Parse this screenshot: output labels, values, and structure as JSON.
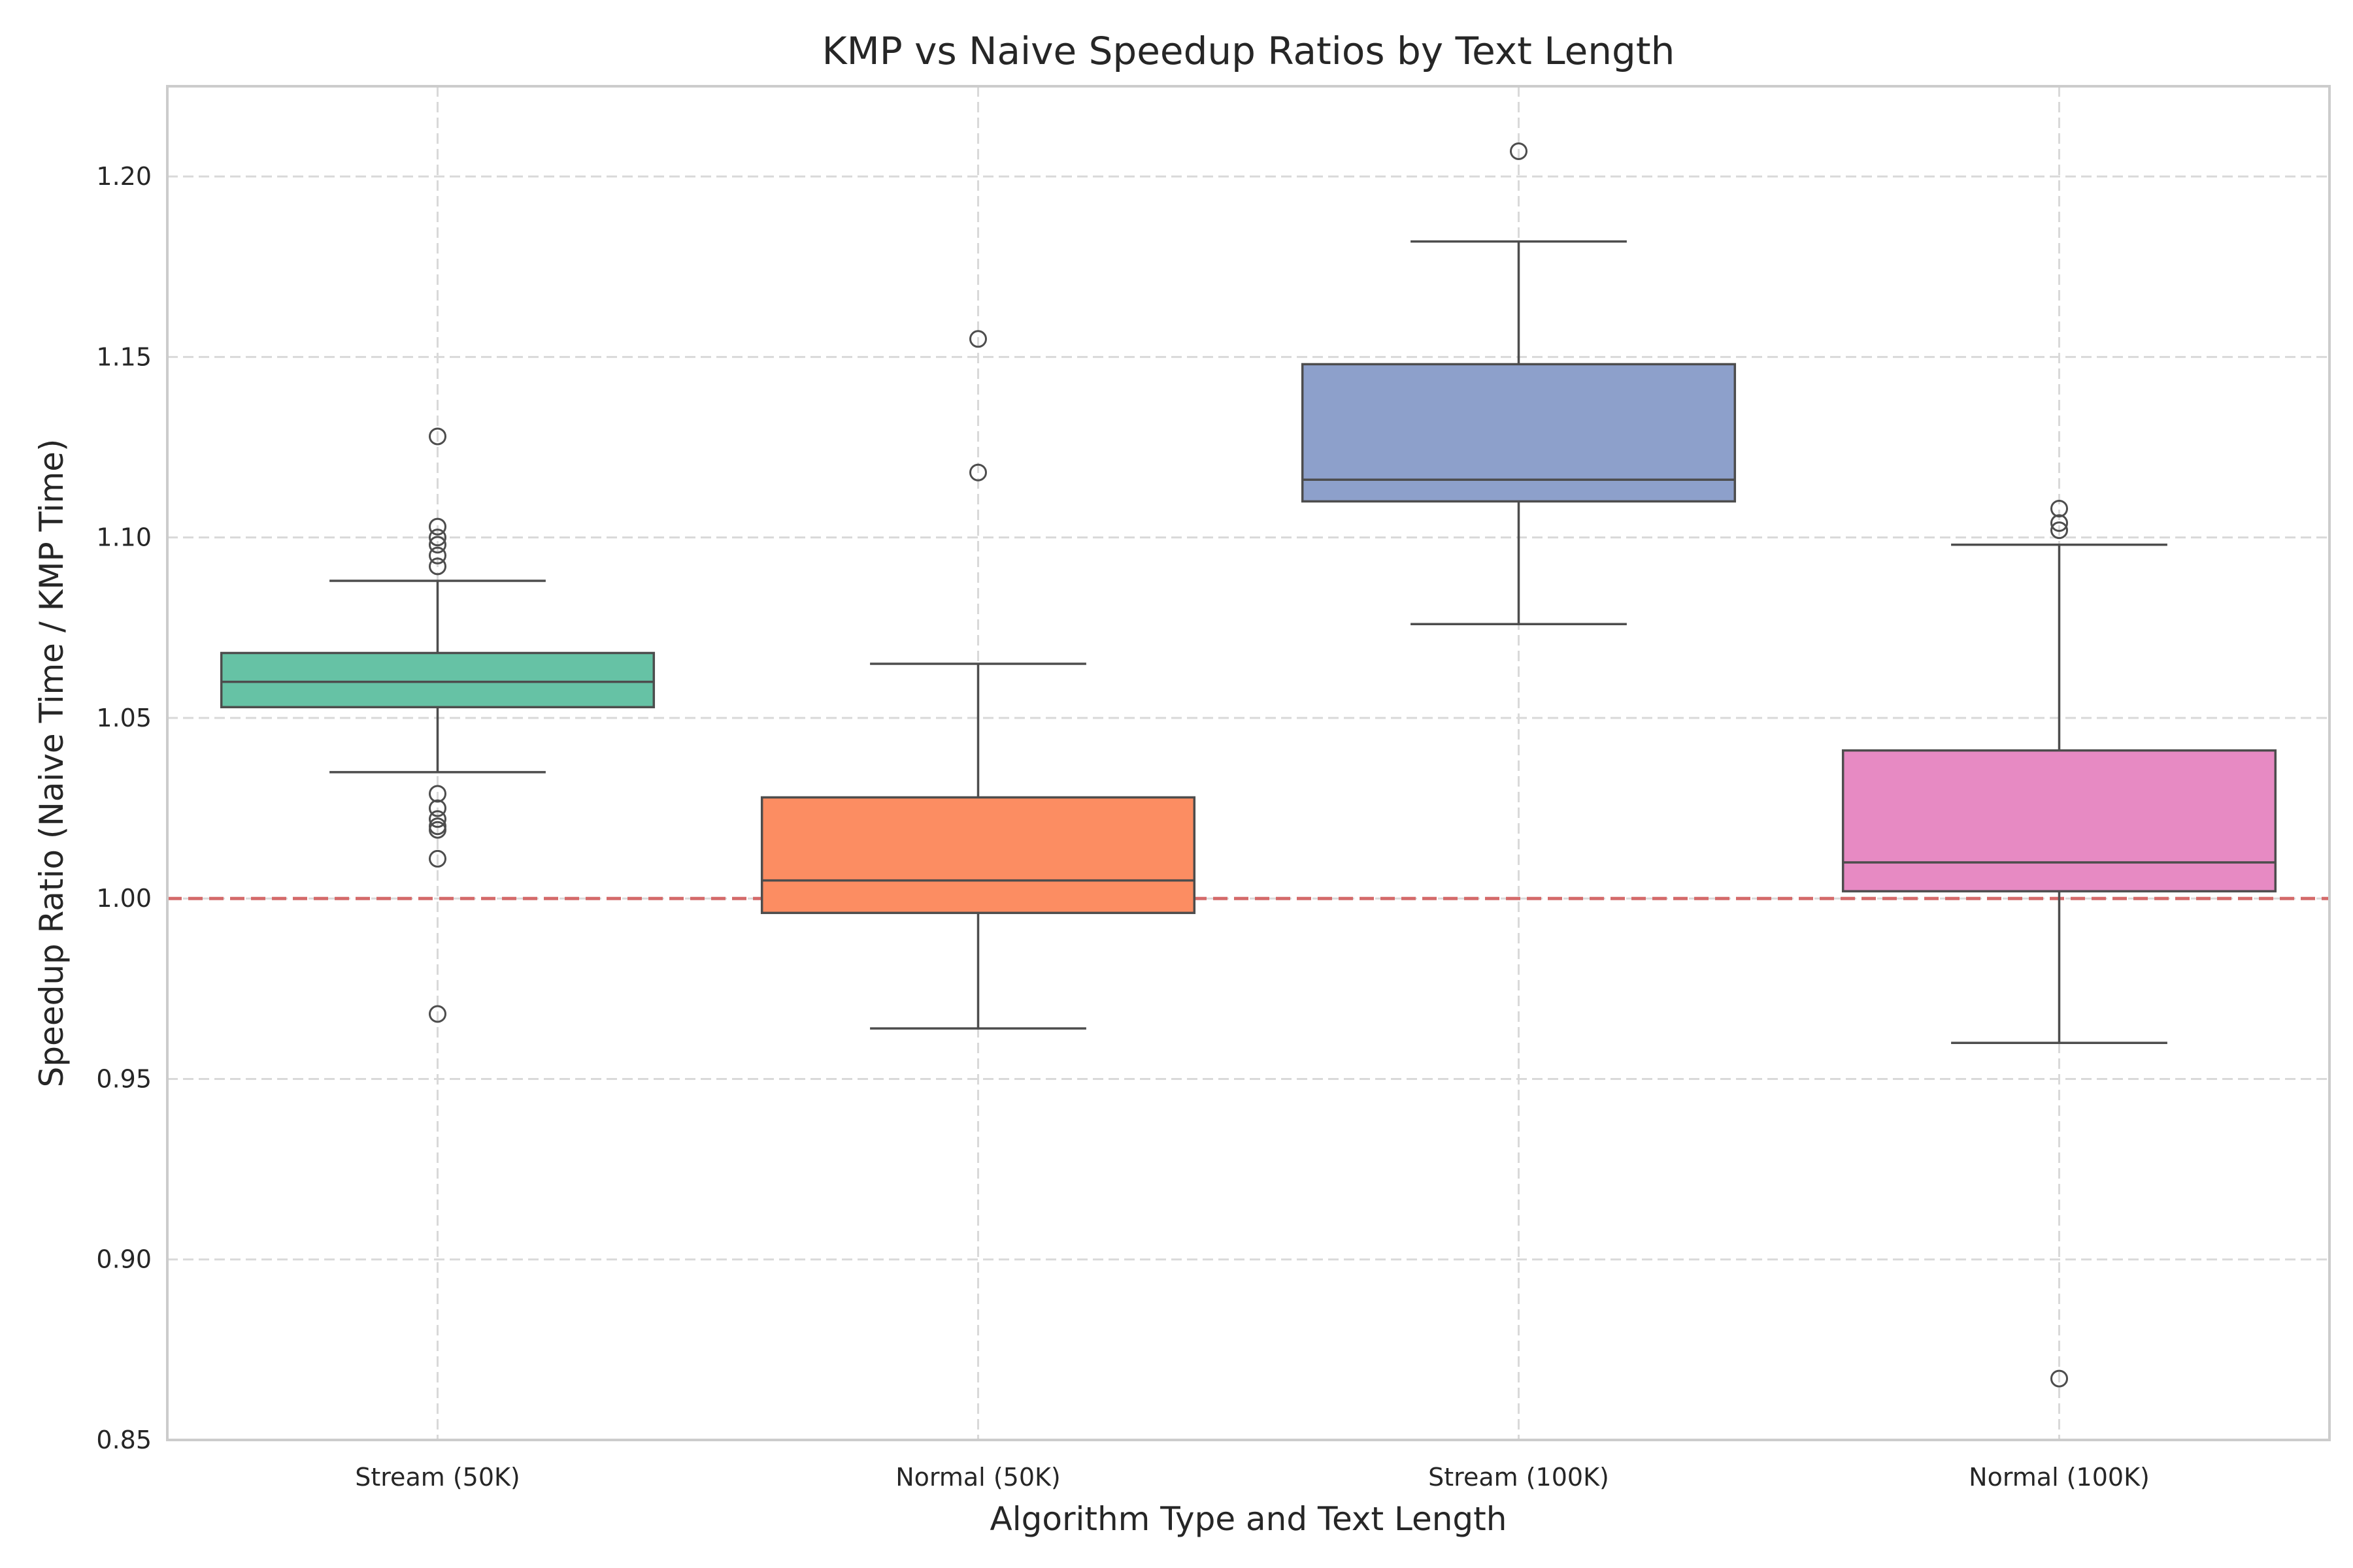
{
  "chart_data": {
    "type": "box",
    "title": "KMP vs Naive Speedup Ratios by Text Length",
    "xlabel": "Algorithm Type and Text Length",
    "ylabel": "Speedup Ratio (Naive Time / KMP Time)",
    "ylim": [
      0.85,
      1.225
    ],
    "yticks": [
      "0.85",
      "0.90",
      "0.95",
      "1.00",
      "1.05",
      "1.10",
      "1.15",
      "1.20"
    ],
    "grid": true,
    "reference_line": {
      "y": 1.0,
      "style": "dashed",
      "color": "#d46a6a"
    },
    "categories": [
      "Stream (50K)",
      "Normal (50K)",
      "Stream (100K)",
      "Normal (100K)"
    ],
    "boxes": [
      {
        "category": "Stream (50K)",
        "color": "#66c2a5",
        "whisker_low": 1.035,
        "q1": 1.053,
        "median": 1.06,
        "q3": 1.068,
        "whisker_high": 1.088,
        "outliers": [
          1.128,
          1.103,
          1.1,
          1.098,
          1.095,
          1.092,
          1.029,
          1.025,
          1.022,
          1.02,
          1.019,
          1.011,
          0.968
        ]
      },
      {
        "category": "Normal (50K)",
        "color": "#fc8d62",
        "whisker_low": 0.964,
        "q1": 0.996,
        "median": 1.005,
        "q3": 1.028,
        "whisker_high": 1.065,
        "outliers": [
          1.155,
          1.118
        ]
      },
      {
        "category": "Stream (100K)",
        "color": "#8da0cb",
        "whisker_low": 1.076,
        "q1": 1.11,
        "median": 1.116,
        "q3": 1.148,
        "whisker_high": 1.182,
        "outliers": [
          1.207
        ]
      },
      {
        "category": "Normal (100K)",
        "color": "#e78ac3",
        "whisker_low": 0.96,
        "q1": 1.002,
        "median": 1.01,
        "q3": 1.041,
        "whisker_high": 1.098,
        "outliers": [
          1.108,
          1.104,
          1.102,
          0.867
        ]
      }
    ]
  }
}
